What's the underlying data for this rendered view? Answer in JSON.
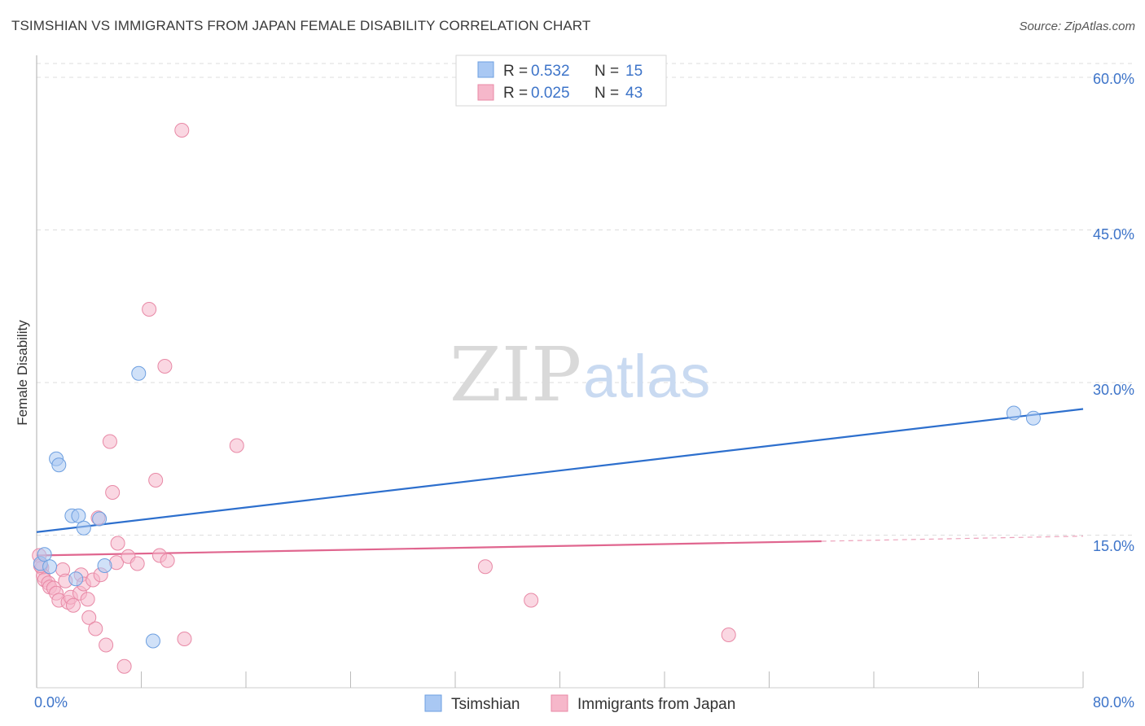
{
  "header": {
    "title": "TSIMSHIAN VS IMMIGRANTS FROM JAPAN FEMALE DISABILITY CORRELATION CHART",
    "source": "Source: ZipAtlas.com"
  },
  "watermark": {
    "zip": "ZIP",
    "atlas": "atlas"
  },
  "chart_data": {
    "type": "scatter",
    "title": "TSIMSHIAN VS IMMIGRANTS FROM JAPAN FEMALE DISABILITY CORRELATION CHART",
    "xlabel": "",
    "ylabel": "Female Disability",
    "xlim": [
      0,
      80
    ],
    "ylim": [
      0,
      62
    ],
    "x_tick_labels": [
      "0.0%",
      "80.0%"
    ],
    "y_ticks": [
      15,
      30,
      45,
      60
    ],
    "y_tick_labels": [
      "15.0%",
      "30.0%",
      "45.0%",
      "60.0%"
    ],
    "grid": "horizontal dashed",
    "legend_stats": [
      {
        "r_label": "R =",
        "r_value": "0.532",
        "n_label": "N =",
        "n_value": "15",
        "color": "#a9c8f3"
      },
      {
        "r_label": "R =",
        "r_value": "0.025",
        "n_label": "N =",
        "n_value": "43",
        "color": "#f6b7ca"
      }
    ],
    "series": [
      {
        "name": "Tsimshian",
        "color": "#a9c8f3",
        "edge": "#6d9fe0",
        "line_color": "#2d6fcd",
        "trend": {
          "x0": 0,
          "y0": 15.3,
          "x1": 80,
          "y1": 27.4
        },
        "points": [
          [
            0.3,
            12.2
          ],
          [
            0.6,
            13.1
          ],
          [
            1.0,
            11.9
          ],
          [
            1.5,
            22.5
          ],
          [
            1.7,
            21.9
          ],
          [
            2.7,
            16.9
          ],
          [
            3.2,
            16.9
          ],
          [
            3.6,
            15.7
          ],
          [
            4.8,
            16.6
          ],
          [
            3.0,
            10.7
          ],
          [
            5.2,
            12.0
          ],
          [
            7.8,
            30.9
          ],
          [
            8.9,
            4.6
          ],
          [
            74.7,
            27.0
          ],
          [
            76.2,
            26.5
          ]
        ]
      },
      {
        "name": "Immigrants from Japan",
        "color": "#f6b7ca",
        "edge": "#e889a6",
        "line_color": "#e0668f",
        "trend": {
          "x0": 0,
          "y0": 13.0,
          "x1": 60,
          "y1": 14.4
        },
        "trend_dashed": {
          "x0": 60,
          "y0": 14.4,
          "x1": 80,
          "y1": 14.9
        },
        "points": [
          [
            0.2,
            13.0
          ],
          [
            0.4,
            11.8
          ],
          [
            0.5,
            11.0
          ],
          [
            0.6,
            10.6
          ],
          [
            0.9,
            10.3
          ],
          [
            1.0,
            9.9
          ],
          [
            1.3,
            9.8
          ],
          [
            1.5,
            9.3
          ],
          [
            1.7,
            8.6
          ],
          [
            2.0,
            11.6
          ],
          [
            2.2,
            10.5
          ],
          [
            2.4,
            8.4
          ],
          [
            2.6,
            8.9
          ],
          [
            2.8,
            8.1
          ],
          [
            3.3,
            9.3
          ],
          [
            3.4,
            11.1
          ],
          [
            3.6,
            10.2
          ],
          [
            3.9,
            8.7
          ],
          [
            4.0,
            6.9
          ],
          [
            4.3,
            10.6
          ],
          [
            4.5,
            5.8
          ],
          [
            4.7,
            16.7
          ],
          [
            4.9,
            11.1
          ],
          [
            5.3,
            4.2
          ],
          [
            5.6,
            24.2
          ],
          [
            5.8,
            19.2
          ],
          [
            6.1,
            12.3
          ],
          [
            6.2,
            14.2
          ],
          [
            6.7,
            2.1
          ],
          [
            7.0,
            12.9
          ],
          [
            7.7,
            12.2
          ],
          [
            8.6,
            37.2
          ],
          [
            9.1,
            20.4
          ],
          [
            9.4,
            13.0
          ],
          [
            9.8,
            31.6
          ],
          [
            10.0,
            12.5
          ],
          [
            11.1,
            54.8
          ],
          [
            11.3,
            4.8
          ],
          [
            15.3,
            23.8
          ],
          [
            34.3,
            11.9
          ],
          [
            37.8,
            8.6
          ],
          [
            52.9,
            5.2
          ],
          [
            0.3,
            12.0
          ]
        ]
      }
    ]
  }
}
